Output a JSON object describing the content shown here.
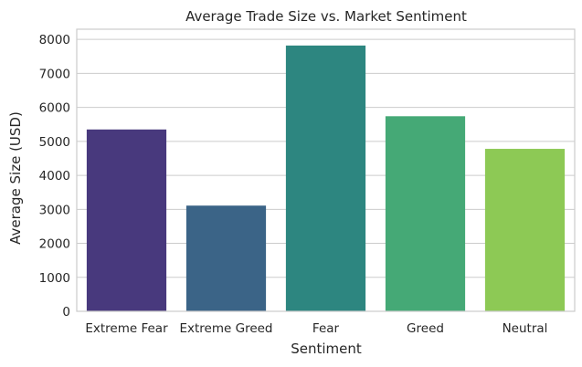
{
  "chart_data": {
    "type": "bar",
    "title": "Average Trade Size vs. Market Sentiment",
    "xlabel": "Sentiment",
    "ylabel": "Average Size (USD)",
    "categories": [
      "Extreme Fear",
      "Extreme Greed",
      "Fear",
      "Greed",
      "Neutral"
    ],
    "values": [
      5350,
      3110,
      7820,
      5740,
      4780
    ],
    "ylim": [
      0,
      8300
    ],
    "yticks": [
      0,
      1000,
      2000,
      3000,
      4000,
      5000,
      6000,
      7000,
      8000
    ],
    "grid": true,
    "colors": [
      "#48397d",
      "#3b6487",
      "#2d8680",
      "#45a976",
      "#8dc955"
    ]
  }
}
